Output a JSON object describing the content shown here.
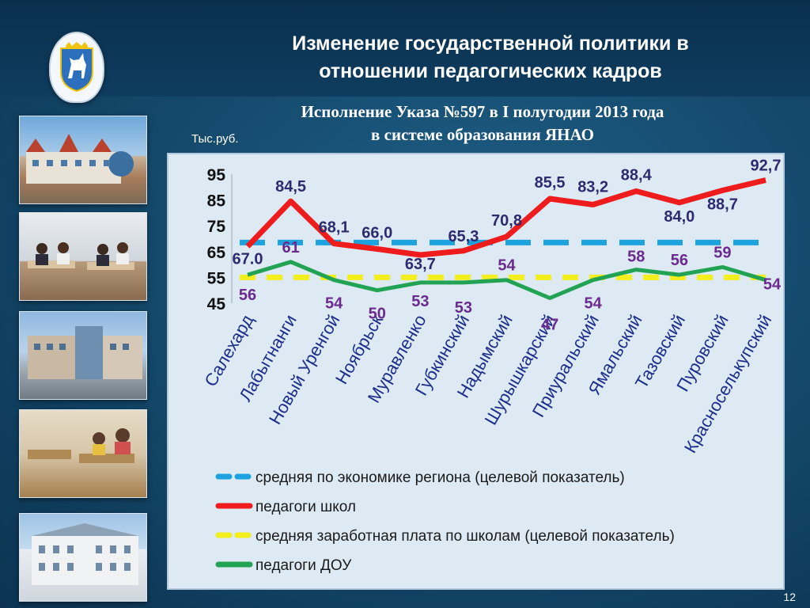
{
  "header": {
    "title": "Изменение государственной политики в\nотношении педагогических кадров"
  },
  "subtitle": "Исполнение Указа №597 в I полугодии 2013 года\nв системе образования ЯНАО",
  "unit_label": "Тыс.руб.",
  "page_number": "12",
  "colors": {
    "economy_target": "#1ca3df",
    "school_teachers": "#ee1c1c",
    "school_target": "#f2ef1c",
    "preschool_teachers": "#22a353",
    "value_label": "#2e2a6e"
  },
  "chart_data": {
    "type": "line",
    "categories": [
      "Салехард",
      "Лабытнанги",
      "Новый Уренгой",
      "Ноябрьск",
      "Муравленко",
      "Губкинский",
      "Надымский",
      "Шурышкарский",
      "Приуральский",
      "Ямальский",
      "Тазовский",
      "Пуровский",
      "Красноселькупский"
    ],
    "ylim": [
      45,
      95
    ],
    "yticks": [
      "95",
      "85",
      "75",
      "65",
      "55",
      "45"
    ],
    "series": [
      {
        "name": "средняя по экономике региона (целевой показатель)",
        "style": "dashed",
        "values": [
          68.5,
          68.5,
          68.5,
          68.5,
          68.5,
          68.5,
          68.5,
          68.5,
          68.5,
          68.5,
          68.5,
          68.5,
          68.5
        ]
      },
      {
        "name": "педагоги школ",
        "style": "solid",
        "values": [
          67.0,
          84.5,
          68.1,
          66.0,
          63.7,
          65.3,
          70.8,
          85.5,
          83.2,
          88.4,
          84.0,
          88.7,
          92.7
        ],
        "labels": [
          "67.0",
          "84,5",
          "68,1",
          "66,0",
          "63,7",
          "65,3",
          "70,8",
          "85,5",
          "83,2",
          "88,4",
          "84,0",
          "88,7",
          "92,7"
        ]
      },
      {
        "name": "средняя заработная плата по школам (целевой показатель)",
        "style": "dashed",
        "values": [
          55,
          55,
          55,
          55,
          55,
          55,
          55,
          55,
          55,
          55,
          55,
          55,
          55
        ]
      },
      {
        "name": "педагоги ДОУ",
        "style": "solid",
        "values": [
          56,
          61,
          54,
          50,
          53,
          53,
          54,
          47,
          54,
          58,
          56,
          59,
          54
        ],
        "labels": [
          "56",
          "61",
          "54",
          "50",
          "53",
          "53",
          "54",
          "47",
          "54",
          "58",
          "56",
          "59",
          "54"
        ]
      }
    ]
  }
}
